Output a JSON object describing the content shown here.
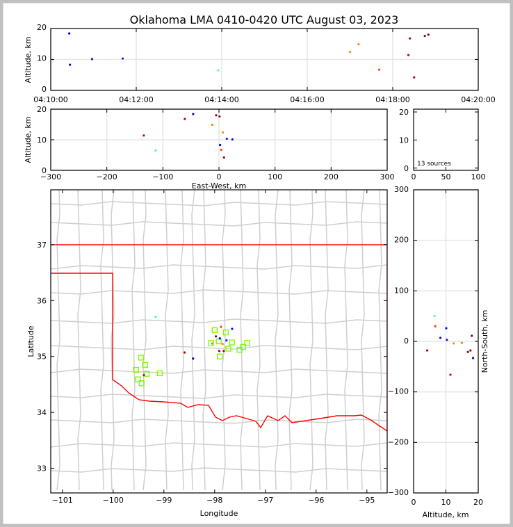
{
  "chart_data": {
    "type": "scatter",
    "title": "Oklahoma LMA 0410-0420 UTC August 03, 2023",
    "source_count_label": "13 sources",
    "panels": {
      "time_altitude": {
        "ylabel": "Altitude, km",
        "xlim": [
          "04:10:00",
          "04:20:00"
        ],
        "ylim": [
          0,
          20
        ],
        "xticks": [
          "04:10:00",
          "04:12:00",
          "04:14:00",
          "04:16:00",
          "04:18:00",
          "04:20:00"
        ],
        "yticks": [
          0,
          10,
          20
        ]
      },
      "ew_altitude": {
        "xlabel": "East-West, km",
        "ylabel": "Altitude, km",
        "xlim": [
          -300,
          300
        ],
        "ylim": [
          0,
          20
        ],
        "xticks": [
          -300,
          -200,
          -100,
          0,
          100,
          200,
          300
        ],
        "yticks": [
          0,
          10,
          20
        ]
      },
      "altitude_histogram": {
        "xlim": [
          0,
          100
        ],
        "ylim": [
          0,
          20
        ],
        "xticks": [
          0,
          50,
          100
        ],
        "yticks": [
          0,
          10,
          20
        ]
      },
      "plan_view": {
        "xlabel": "Longitude",
        "ylabel": "Latitude",
        "xlim": [
          -101.23,
          -94.6
        ],
        "ylim": [
          32.56,
          37.98
        ],
        "xticks": [
          -101,
          -100,
          -99,
          -98,
          -97,
          -96,
          -95
        ],
        "yticks": [
          33,
          34,
          35,
          36,
          37
        ]
      },
      "ns_altitude": {
        "xlabel": "Altitude, km",
        "ylabel": "North-South, km",
        "xlim": [
          0,
          20
        ],
        "ylim": [
          -300,
          300
        ],
        "xticks": [
          0,
          10,
          20
        ],
        "yticks": [
          -300,
          -200,
          -100,
          0,
          100,
          200,
          300
        ]
      }
    },
    "colormap": "jet (by time)",
    "grid": true,
    "sources": [
      {
        "time": "04:10:26",
        "ew_km": -46,
        "ns_km": -33,
        "alt_km": 18.4,
        "color": "#0000c0"
      },
      {
        "time": "04:10:27",
        "ew_km": 2,
        "ns_km": 7,
        "alt_km": 8.3,
        "color": "#0000c8"
      },
      {
        "time": "04:10:58",
        "ew_km": 24,
        "ns_km": 26,
        "alt_km": 10.1,
        "color": "#0010ff"
      },
      {
        "time": "04:11:41",
        "ew_km": 14,
        "ns_km": 3,
        "alt_km": 10.3,
        "color": "#0020ff"
      },
      {
        "time": "04:13:55",
        "ew_km": -113,
        "ns_km": 50,
        "alt_km": 6.5,
        "color": "#40ffb8"
      },
      {
        "time": "04:17:00",
        "ew_km": 7,
        "ns_km": -4,
        "alt_km": 12.4,
        "color": "#ff9000"
      },
      {
        "time": "04:17:12",
        "ew_km": -12,
        "ns_km": -3,
        "alt_km": 14.9,
        "color": "#ff8000"
      },
      {
        "time": "04:17:41",
        "ew_km": 4,
        "ns_km": 30,
        "alt_km": 6.7,
        "color": "#ff4000"
      },
      {
        "time": "04:18:22",
        "ew_km": -134,
        "ns_km": -66,
        "alt_km": 11.4,
        "color": "#d80000"
      },
      {
        "time": "04:18:24",
        "ew_km": -61,
        "ns_km": -21,
        "alt_km": 16.8,
        "color": "#c00000"
      },
      {
        "time": "04:18:30",
        "ew_km": 9,
        "ns_km": -18,
        "alt_km": 4.2,
        "color": "#b00000"
      },
      {
        "time": "04:18:45",
        "ew_km": 1,
        "ns_km": -18,
        "alt_km": 17.6,
        "color": "#a00000"
      },
      {
        "time": "04:18:50",
        "ew_km": -5,
        "ns_km": 11,
        "alt_km": 18.0,
        "color": "#900000"
      }
    ],
    "stations": {
      "color": "#7cfc00",
      "points": [
        [
          -98.0,
          35.47
        ],
        [
          -97.78,
          35.43
        ],
        [
          -97.92,
          35.27
        ],
        [
          -98.07,
          35.24
        ],
        [
          -97.66,
          35.25
        ],
        [
          -97.36,
          35.24
        ],
        [
          -97.44,
          35.17
        ],
        [
          -97.51,
          35.12
        ],
        [
          -97.73,
          35.14
        ],
        [
          -97.9,
          35.0
        ],
        [
          -99.45,
          34.98
        ],
        [
          -99.37,
          34.85
        ],
        [
          -99.55,
          34.76
        ],
        [
          -99.34,
          34.69
        ],
        [
          -99.08,
          34.7
        ],
        [
          -99.51,
          34.59
        ],
        [
          -99.44,
          34.52
        ]
      ]
    },
    "state_border_color": "#ff0000",
    "county_border_color": "#cfcfcf"
  }
}
